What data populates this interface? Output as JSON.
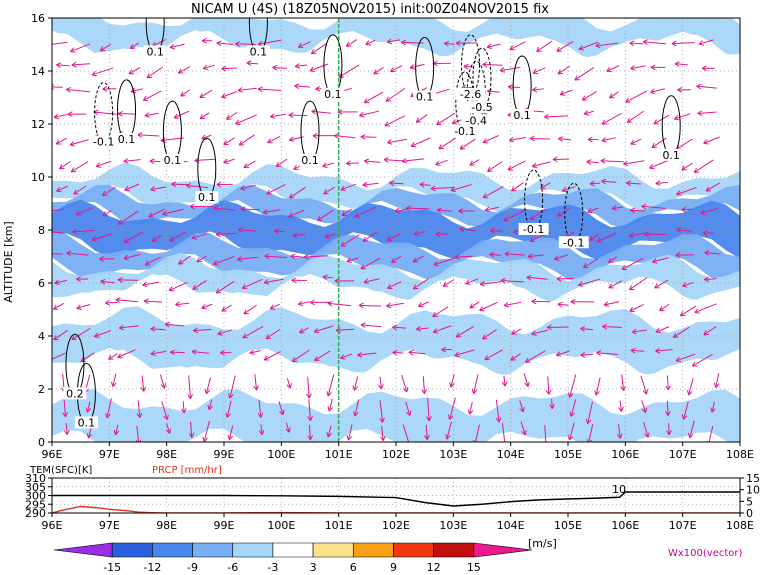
{
  "title": "NICAM  U  (4S)  (18Z05NOV2015)  init:00Z04NOV2015  fix",
  "colors": {
    "contour": "#000000",
    "vector": "#e0188c",
    "marker_line": "#22b14c",
    "precip": "#e8301e",
    "precip_label": "#e8301e",
    "wx_label": "#cc0099"
  },
  "chart_data": [
    {
      "type": "heatmap",
      "title": "NICAM  U  (4S)  (18Z05NOV2015)  init:00Z04NOV2015  fix",
      "xlabel": "",
      "ylabel": "ALTITUDE  [km]",
      "x_ticks": [
        "96E",
        "97E",
        "98E",
        "99E",
        "100E",
        "101E",
        "102E",
        "103E",
        "104E",
        "105E",
        "106E",
        "107E",
        "108E"
      ],
      "x_range": [
        96,
        108
      ],
      "y_ticks": [
        "0",
        "2",
        "4",
        "6",
        "8",
        "10",
        "12",
        "14",
        "16"
      ],
      "y_range": [
        0,
        16
      ],
      "grid": true,
      "marker_lon": 101,
      "bands": [
        {
          "y0": 15.0,
          "y1": 16.0,
          "u": -6
        },
        {
          "y0": 14.0,
          "y1": 15.0,
          "u": -3
        },
        {
          "y0": 11.0,
          "y1": 14.0,
          "u": 0
        },
        {
          "y0": 10.0,
          "y1": 11.0,
          "u": -3
        },
        {
          "y0": 9.2,
          "y1": 10.0,
          "u": -6
        },
        {
          "y0": 8.6,
          "y1": 9.2,
          "u": -9
        },
        {
          "y0": 7.4,
          "y1": 8.6,
          "u": -12
        },
        {
          "y0": 6.6,
          "y1": 7.4,
          "u": -9
        },
        {
          "y0": 5.8,
          "y1": 6.6,
          "u": -6
        },
        {
          "y0": 4.6,
          "y1": 5.8,
          "u": -3
        },
        {
          "y0": 3.0,
          "y1": 4.6,
          "u": -6
        },
        {
          "y0": 1.5,
          "y1": 3.0,
          "u": -3
        },
        {
          "y0": 0.0,
          "y1": 1.5,
          "u": -6
        }
      ],
      "contour_labels": [
        {
          "x": 96.9,
          "y": 11.3,
          "text": "-0.1"
        },
        {
          "x": 97.3,
          "y": 11.4,
          "text": "0.1"
        },
        {
          "x": 97.8,
          "y": 14.7,
          "text": "0.1"
        },
        {
          "x": 98.1,
          "y": 10.6,
          "text": "0.1"
        },
        {
          "x": 98.7,
          "y": 9.2,
          "text": "0.1"
        },
        {
          "x": 99.6,
          "y": 14.7,
          "text": "0.1"
        },
        {
          "x": 100.5,
          "y": 10.6,
          "text": "0.1"
        },
        {
          "x": 100.9,
          "y": 13.1,
          "text": "0.1"
        },
        {
          "x": 102.5,
          "y": 13.0,
          "text": "0.1"
        },
        {
          "x": 103.3,
          "y": 13.1,
          "text": "-2.6"
        },
        {
          "x": 103.5,
          "y": 12.6,
          "text": "-0.5"
        },
        {
          "x": 103.4,
          "y": 12.1,
          "text": "-0.4"
        },
        {
          "x": 103.2,
          "y": 11.7,
          "text": "-0.1"
        },
        {
          "x": 104.2,
          "y": 12.3,
          "text": "0.1"
        },
        {
          "x": 104.4,
          "y": 8.0,
          "text": "-0.1"
        },
        {
          "x": 105.1,
          "y": 7.5,
          "text": "-0.1"
        },
        {
          "x": 106.8,
          "y": 10.8,
          "text": "0.1"
        },
        {
          "x": 96.4,
          "y": 1.8,
          "text": "0.2"
        },
        {
          "x": 96.6,
          "y": 0.7,
          "text": "0.1"
        }
      ]
    },
    {
      "type": "line",
      "left_label": "TEM(SFC)[K]",
      "right_label": "PRCP [mm/hr]",
      "x_ticks": [
        "96E",
        "97E",
        "98E",
        "99E",
        "100E",
        "101E",
        "102E",
        "103E",
        "104E",
        "105E",
        "106E",
        "107E",
        "108E"
      ],
      "x_range": [
        96,
        108
      ],
      "y_left_ticks": [
        "310",
        "305",
        "300",
        "295",
        "290"
      ],
      "y_left_range": [
        290,
        310
      ],
      "y_right_ticks": [
        "15",
        "10",
        "5",
        "0"
      ],
      "y_right_range": [
        0,
        15
      ],
      "annotation": "10",
      "series": [
        {
          "axis": "left",
          "x": [
            96,
            97,
            98,
            99,
            100,
            101,
            102,
            102.5,
            103,
            103.5,
            104,
            104.5,
            105,
            105.5,
            105.9,
            106,
            106.5,
            107,
            108
          ],
          "values": [
            300,
            300,
            300,
            300,
            299.8,
            299.5,
            298.8,
            296,
            294,
            295,
            296.5,
            297.5,
            298,
            298.5,
            299,
            302,
            302,
            302,
            302
          ]
        },
        {
          "axis": "right",
          "x": [
            96,
            96.2,
            96.5,
            96.8,
            97.0,
            97.3,
            97.5,
            97.8,
            98,
            99,
            100,
            101,
            102,
            103,
            104,
            105,
            106,
            107,
            108
          ],
          "values": [
            0,
            1.3,
            2.8,
            2.2,
            1.6,
            1.0,
            0.4,
            0.1,
            0,
            0,
            0.2,
            0,
            0,
            0,
            0,
            0,
            0,
            0,
            0
          ]
        }
      ]
    }
  ],
  "colorbar": {
    "ticks": [
      "-15",
      "-12",
      "-9",
      "-6",
      "-3",
      "3",
      "6",
      "9",
      "12",
      "15"
    ],
    "colors": [
      "#9a2ee6",
      "#2a5fe0",
      "#4a86ec",
      "#78aef4",
      "#a6d6f8",
      "#ffffff",
      "#fce28a",
      "#f8a018",
      "#f03810",
      "#c01010",
      "#f01890"
    ],
    "unit": "[m/s]"
  },
  "vector_label": "Wx100(vector)"
}
